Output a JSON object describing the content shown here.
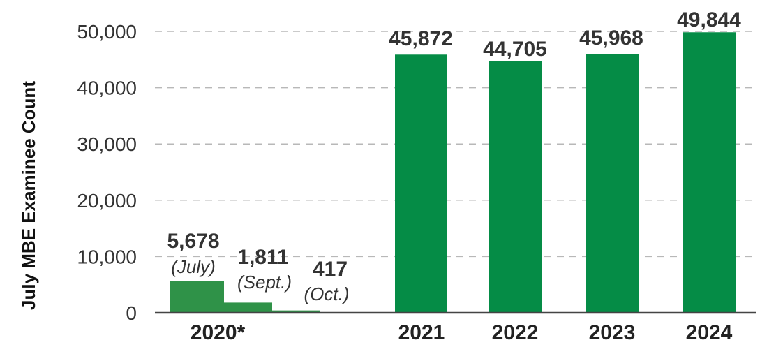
{
  "chart_data": {
    "type": "bar",
    "ylabel": "July MBE Examinee Count",
    "ylim": [
      0,
      50000
    ],
    "yticks": [
      "0",
      "10,000",
      "20,000",
      "30,000",
      "40,000",
      "50,000"
    ],
    "grid": true,
    "categories": [
      "2020*",
      "2021",
      "2022",
      "2023",
      "2024"
    ],
    "bars": [
      {
        "category": "2020*",
        "value": 5678,
        "label": "5,678",
        "sublabel": "(July)"
      },
      {
        "category": "2020*",
        "value": 1811,
        "label": "1,811",
        "sublabel": "(Sept.)"
      },
      {
        "category": "2020*",
        "value": 417,
        "label": "417",
        "sublabel": "(Oct.)"
      },
      {
        "category": "2021",
        "value": 45872,
        "label": "45,872",
        "sublabel": ""
      },
      {
        "category": "2022",
        "value": 44705,
        "label": "44,705",
        "sublabel": ""
      },
      {
        "category": "2023",
        "value": 45968,
        "label": "45,968",
        "sublabel": ""
      },
      {
        "category": "2024",
        "value": 49844,
        "label": "49,844",
        "sublabel": ""
      }
    ],
    "colors": {
      "bar_2020": "#2f9248",
      "bar": "#058c46",
      "grid": "#b8b8b8",
      "axis": "#444444"
    }
  }
}
